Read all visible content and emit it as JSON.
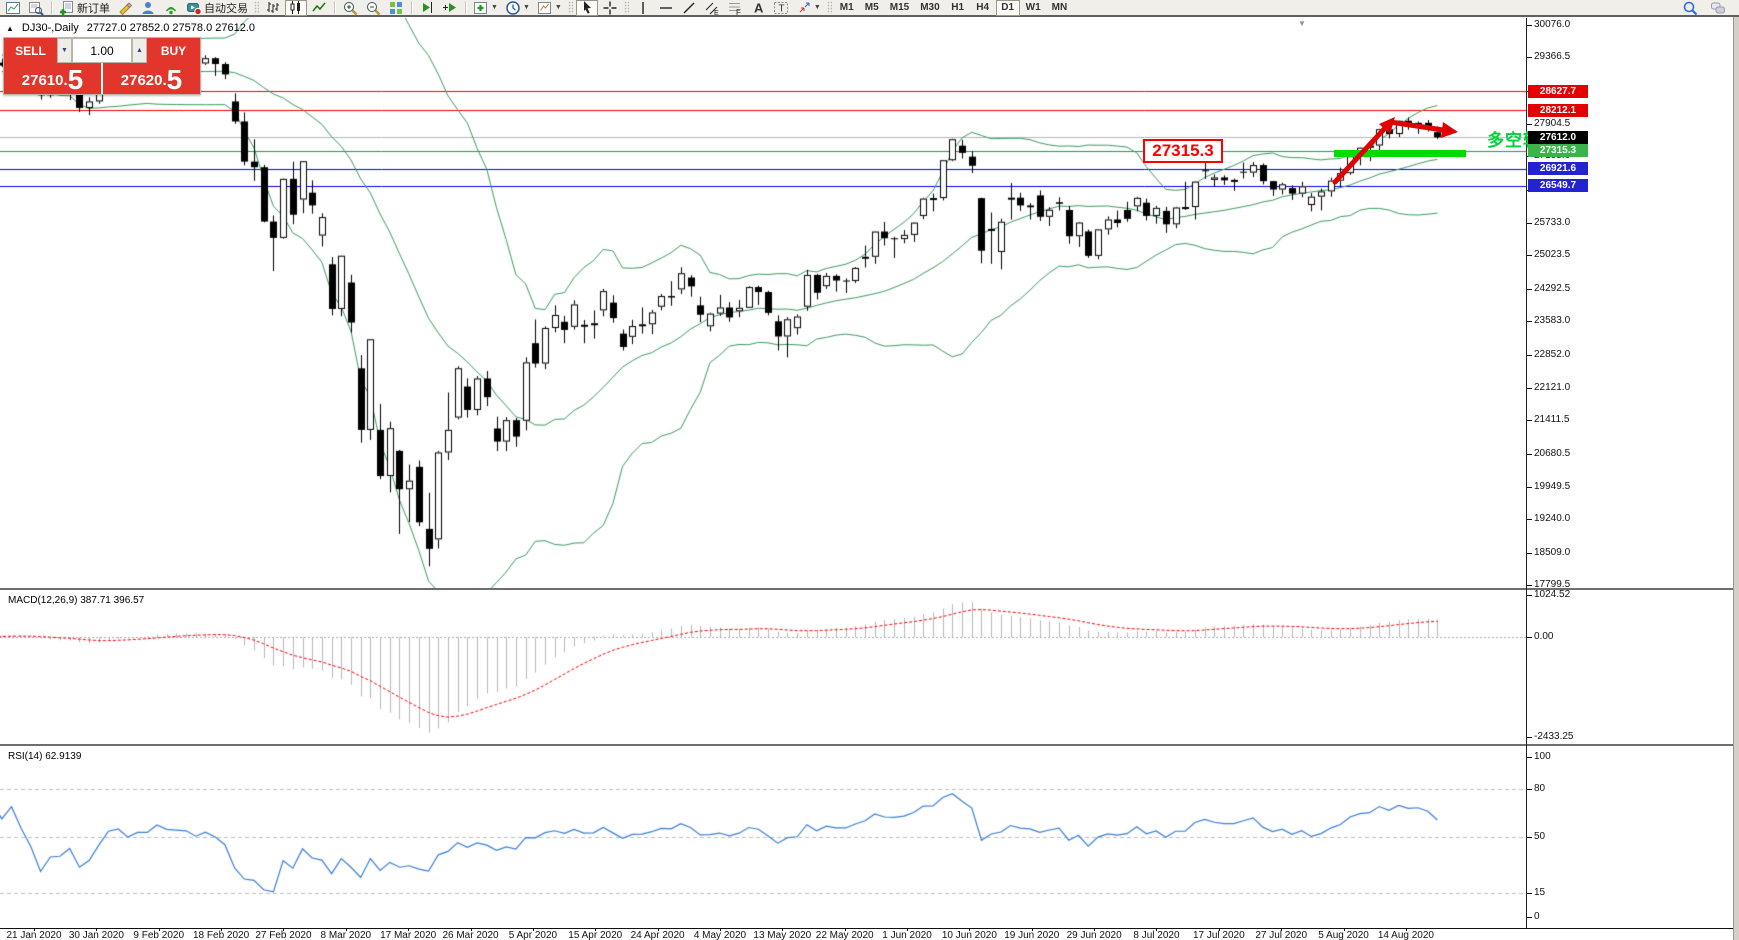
{
  "toolbar": {
    "groups": [
      {
        "grip": false,
        "items": [
          {
            "name": "charts",
            "icon": "charts"
          },
          {
            "name": "data-window",
            "icon": "data-window"
          }
        ]
      },
      {
        "grip": false,
        "items": [
          {
            "name": "new-order",
            "icon": "new-order",
            "label": "新订单"
          },
          {
            "name": "metaeditor",
            "icon": "metaeditor"
          },
          {
            "name": "community",
            "icon": "community"
          },
          {
            "name": "signals",
            "icon": "signals"
          },
          {
            "name": "autotrading",
            "icon": "autotrading",
            "label": "自动交易"
          }
        ]
      },
      {
        "grip": true,
        "items": [
          {
            "name": "bar-chart",
            "icon": "bars"
          },
          {
            "name": "candlestick-chart",
            "icon": "candles",
            "active": true
          },
          {
            "name": "line-chart",
            "icon": "line-chart"
          }
        ]
      },
      {
        "grip": false,
        "items": [
          {
            "name": "zoom-in",
            "icon": "zoom-in"
          },
          {
            "name": "zoom-out",
            "icon": "zoom-out"
          },
          {
            "name": "tile-windows",
            "icon": "tile-windows"
          }
        ]
      },
      {
        "grip": false,
        "items": [
          {
            "name": "auto-scroll",
            "icon": "auto-scroll"
          },
          {
            "name": "chart-shift",
            "icon": "chart-shift"
          }
        ]
      },
      {
        "grip": false,
        "items": [
          {
            "name": "indicators",
            "icon": "indicators",
            "caret": true
          },
          {
            "name": "periods",
            "icon": "periods",
            "caret": true
          },
          {
            "name": "templates",
            "icon": "templates",
            "caret": true
          }
        ]
      },
      {
        "grip": true,
        "items": [
          {
            "name": "cursor",
            "icon": "cursor",
            "active": true
          },
          {
            "name": "crosshair",
            "icon": "crosshair"
          }
        ]
      },
      {
        "grip": true,
        "items": [
          {
            "name": "vertical-line",
            "icon": "vertical-line"
          },
          {
            "name": "horizontal-line",
            "icon": "horizontal-line"
          },
          {
            "name": "trend-line",
            "icon": "trend-line"
          },
          {
            "name": "equidistant-channel",
            "icon": "equidistant-channel"
          },
          {
            "name": "fibonacci",
            "icon": "fibonacci"
          },
          {
            "name": "text",
            "icon": "text"
          },
          {
            "name": "text-label",
            "icon": "text-label"
          },
          {
            "name": "arrows-tool",
            "icon": "arrows-tool",
            "caret": true
          }
        ]
      }
    ],
    "timeframes": [
      "M1",
      "M5",
      "M15",
      "M30",
      "H1",
      "H4",
      "D1",
      "W1",
      "MN"
    ],
    "active_timeframe": "D1",
    "right_icons": [
      {
        "name": "search",
        "icon": "search"
      },
      {
        "name": "community-chat",
        "icon": "chat"
      }
    ]
  },
  "chart": {
    "collapse_marker": "▲",
    "symbol_period": "DJ30-,Daily",
    "ohlc_text": "27727.0 27852.0 27578.0 27612.0",
    "shift_marker": "▼",
    "trade_panel": {
      "sell_label": "SELL",
      "buy_label": "BUY",
      "volume": "1.00",
      "spin_down": "▼",
      "spin_up": "▲",
      "sell_price_main": "27610.",
      "sell_price_big": "5",
      "buy_price_main": "27620.",
      "buy_price_big": "5"
    },
    "levels": [
      {
        "value": "28627.7",
        "price": 28627.7,
        "line": "#ff0000",
        "badge": "#e40000"
      },
      {
        "value": "28212.1",
        "price": 28212.1,
        "line": "#ff0000",
        "badge": "#e40000"
      },
      {
        "value": "27612.0",
        "price": 27612.0,
        "line": "#b8b8b8",
        "badge": "#000000"
      },
      {
        "value": "27315.3",
        "price": 27315.3,
        "line": "#00a651",
        "badge": "#3bb54a"
      },
      {
        "value": "26921.6",
        "price": 26921.6,
        "line": "#0000ff",
        "badge": "#2323cf"
      },
      {
        "value": "26549.7",
        "price": 26549.7,
        "line": "#0000ff",
        "badge": "#2323cf"
      }
    ],
    "price_ticks": [
      "30076.0",
      "29366.5",
      "28635.5",
      "27904.5",
      "27195.0",
      "26464.0",
      "25733.0",
      "25023.5",
      "24292.5",
      "23583.0",
      "22852.0",
      "22121.0",
      "21411.5",
      "20680.5",
      "19949.5",
      "19240.0",
      "18509.0",
      "17799.5"
    ],
    "macd_label": {
      "title": "MACD(12,26,9)",
      "value_main": "387.71",
      "value_signal": "396.57"
    },
    "macd_ticks": [
      {
        "text": "1024.52",
        "v": 1024.52
      },
      {
        "text": "0.00",
        "v": 0
      },
      {
        "text": "-2433.25",
        "v": -2433.25
      }
    ],
    "rsi_label": {
      "title": "RSI(14)",
      "value": "62.9139"
    },
    "rsi_ticks": [
      {
        "text": "100",
        "v": 100
      },
      {
        "text": "80",
        "v": 80
      },
      {
        "text": "50",
        "v": 50
      },
      {
        "text": "15",
        "v": 15
      },
      {
        "text": "0",
        "v": 0
      }
    ],
    "rsi_levels": [
      80,
      50,
      15
    ],
    "annotations": {
      "price_flag": "27315.3",
      "pivot_text": "多空转折点"
    }
  },
  "chart_data": {
    "type": "candlestick",
    "symbol": "DJ30",
    "period": "Daily",
    "last_ohlc": {
      "open": 27727.0,
      "high": 27852.0,
      "low": 27578.0,
      "close": 27612.0
    },
    "price_axis": {
      "visible_max": 30229,
      "visible_min": 17734
    },
    "macd_axis": {
      "max": 1100,
      "min": -2550
    },
    "rsi_axis": {
      "max": 100,
      "min": 0
    },
    "levels": [
      28627.7,
      28212.1,
      27612.0,
      27315.3,
      26921.6,
      26549.7
    ],
    "indicators": {
      "bollinger": {
        "period": 20,
        "deviation": 2,
        "color": "#3c9a5f"
      },
      "macd": {
        "fast": 12,
        "slow": 26,
        "signal": 9,
        "last_main": 387.71,
        "last_signal": 396.57
      },
      "rsi": {
        "period": 14,
        "last": 62.9139,
        "color": "#3b7dd8"
      }
    },
    "time_labels": [
      "21 Jan 2020",
      "30 Jan 2020",
      "9 Feb 2020",
      "18 Feb 2020",
      "27 Feb 2020",
      "8 Mar 2020",
      "17 Mar 2020",
      "26 Mar 2020",
      "5 Apr 2020",
      "15 Apr 2020",
      "24 Apr 2020",
      "4 May 2020",
      "13 May 2020",
      "22 May 2020",
      "1 Jun 2020",
      "10 Jun 2020",
      "19 Jun 2020",
      "29 Jun 2020",
      "8 Jul 2020",
      "17 Jul 2020",
      "27 Jul 2020",
      "5 Aug 2020",
      "14 Aug 2020"
    ],
    "candles": [
      [
        28940,
        29130,
        28910,
        29090
      ],
      [
        29090,
        29320,
        29060,
        29300
      ],
      [
        29300,
        29410,
        29240,
        29350
      ],
      [
        29350,
        29390,
        29170,
        29250
      ],
      [
        29250,
        29338,
        29152,
        29186
      ],
      [
        29186,
        29320,
        29140,
        29290
      ],
      [
        29290,
        29300,
        29060,
        29160
      ],
      [
        29160,
        29230,
        28843,
        28990
      ],
      [
        28905,
        28960,
        28440,
        28536
      ],
      [
        28536,
        28750,
        28480,
        28723
      ],
      [
        28723,
        28860,
        28600,
        28734
      ],
      [
        28734,
        28880,
        28430,
        28859
      ],
      [
        28859,
        28870,
        28170,
        28256
      ],
      [
        28256,
        28490,
        28100,
        28400
      ],
      [
        28400,
        28830,
        28350,
        28808
      ],
      [
        28808,
        29310,
        28700,
        29291
      ],
      [
        29291,
        29400,
        29150,
        29380
      ],
      [
        29380,
        29390,
        29060,
        29103
      ],
      [
        29103,
        29280,
        28950,
        29277
      ],
      [
        29277,
        29420,
        29210,
        29276
      ],
      [
        29276,
        29570,
        29250,
        29551
      ],
      [
        29500,
        29540,
        29300,
        29423
      ],
      [
        29423,
        29480,
        29330,
        29398
      ],
      [
        29398,
        29430,
        29280,
        29380
      ],
      [
        29380,
        29400,
        29190,
        29232
      ],
      [
        29232,
        29409,
        29200,
        29348
      ],
      [
        29348,
        29370,
        28960,
        29220
      ],
      [
        29220,
        29260,
        28890,
        28992
      ],
      [
        28400,
        28580,
        27910,
        27961
      ],
      [
        27961,
        28160,
        27000,
        27081
      ],
      [
        27081,
        27570,
        26660,
        26958
      ],
      [
        26958,
        27010,
        25750,
        25767
      ],
      [
        25767,
        25900,
        24680,
        25409
      ],
      [
        25409,
        26710,
        25390,
        26703
      ],
      [
        26703,
        27080,
        25710,
        25917
      ],
      [
        26250,
        27090,
        25950,
        27090
      ],
      [
        26400,
        26670,
        25940,
        26121
      ],
      [
        25460,
        25950,
        25220,
        25865
      ],
      [
        24830,
        24990,
        23710,
        23851
      ],
      [
        23851,
        25020,
        23690,
        25018
      ],
      [
        24430,
        24600,
        23330,
        23553
      ],
      [
        22550,
        22840,
        20920,
        21200
      ],
      [
        21200,
        23190,
        20980,
        23186
      ],
      [
        21200,
        21770,
        20120,
        20188
      ],
      [
        20188,
        21380,
        19830,
        21237
      ],
      [
        20740,
        20760,
        18920,
        19899
      ],
      [
        19899,
        20440,
        19180,
        20087
      ],
      [
        20390,
        20530,
        19090,
        19174
      ],
      [
        19030,
        19820,
        18210,
        18592
      ],
      [
        18800,
        20740,
        18600,
        20705
      ],
      [
        20705,
        22020,
        20540,
        21201
      ],
      [
        21470,
        22595,
        21430,
        22552
      ],
      [
        22150,
        22330,
        21470,
        21637
      ],
      [
        21637,
        22380,
        21520,
        22327
      ],
      [
        22327,
        22490,
        21720,
        21917
      ],
      [
        21230,
        21490,
        20735,
        20944
      ],
      [
        20944,
        21480,
        20735,
        21413
      ],
      [
        21413,
        21460,
        20830,
        21053
      ],
      [
        21400,
        22790,
        21190,
        22680
      ],
      [
        23100,
        23620,
        22565,
        22654
      ],
      [
        22654,
        23470,
        22530,
        23434
      ],
      [
        23434,
        23930,
        23340,
        23719
      ],
      [
        23570,
        23700,
        23100,
        23391
      ],
      [
        23460,
        24040,
        23400,
        23950
      ],
      [
        23480,
        23610,
        23100,
        23504
      ],
      [
        23504,
        23820,
        23200,
        23538
      ],
      [
        23820,
        24290,
        23690,
        24242
      ],
      [
        23990,
        24150,
        23550,
        23650
      ],
      [
        23310,
        23400,
        22940,
        23018
      ],
      [
        23240,
        23613,
        23080,
        23476
      ],
      [
        23476,
        23885,
        23310,
        23515
      ],
      [
        23515,
        23830,
        23300,
        23775
      ],
      [
        23900,
        24180,
        23820,
        24134
      ],
      [
        24134,
        24460,
        23920,
        24102
      ],
      [
        24280,
        24765,
        24180,
        24634
      ],
      [
        24540,
        24590,
        24120,
        24346
      ],
      [
        23930,
        24120,
        23560,
        23724
      ],
      [
        23470,
        23770,
        23360,
        23749
      ],
      [
        23749,
        24160,
        23700,
        23883
      ],
      [
        23883,
        24000,
        23570,
        23665
      ],
      [
        23800,
        24050,
        23670,
        23876
      ],
      [
        23876,
        24350,
        23900,
        24331
      ],
      [
        24331,
        24360,
        23940,
        24222
      ],
      [
        24222,
        24250,
        23710,
        23765
      ],
      [
        23580,
        23710,
        22940,
        23248
      ],
      [
        23248,
        23670,
        22790,
        23625
      ],
      [
        23430,
        23730,
        23290,
        23685
      ],
      [
        23900,
        24710,
        23810,
        24597
      ],
      [
        24597,
        24620,
        24060,
        24206
      ],
      [
        24350,
        24640,
        24290,
        24576
      ],
      [
        24576,
        24610,
        24230,
        24474
      ],
      [
        24474,
        24520,
        24200,
        24465
      ],
      [
        24465,
        24770,
        24420,
        24750
      ],
      [
        24990,
        25240,
        24760,
        24995
      ],
      [
        24995,
        25550,
        24840,
        25548
      ],
      [
        25548,
        25760,
        25240,
        25401
      ],
      [
        25401,
        25430,
        24970,
        25383
      ],
      [
        25383,
        25580,
        25290,
        25475
      ],
      [
        25475,
        25750,
        25320,
        25743
      ],
      [
        25890,
        26290,
        25820,
        26270
      ],
      [
        26270,
        26380,
        25990,
        26282
      ],
      [
        26282,
        27110,
        26230,
        27111
      ],
      [
        27111,
        27580,
        27090,
        27572
      ],
      [
        27430,
        27560,
        27150,
        27272
      ],
      [
        27190,
        27310,
        26830,
        26990
      ],
      [
        26280,
        26290,
        24850,
        25128
      ],
      [
        25590,
        25965,
        24840,
        25605
      ],
      [
        25100,
        25830,
        24720,
        25763
      ],
      [
        26280,
        26610,
        25810,
        26290
      ],
      [
        26290,
        26400,
        26000,
        26120
      ],
      [
        26120,
        26170,
        25810,
        26080
      ],
      [
        26340,
        26450,
        25780,
        25871
      ],
      [
        25871,
        26080,
        25670,
        26025
      ],
      [
        26190,
        26300,
        26010,
        26156
      ],
      [
        26020,
        26110,
        25280,
        25445
      ],
      [
        25445,
        25760,
        25210,
        25745
      ],
      [
        25550,
        25590,
        24970,
        25015
      ],
      [
        25015,
        25600,
        24940,
        25595
      ],
      [
        25595,
        25880,
        25480,
        25812
      ],
      [
        25812,
        26010,
        25640,
        25735
      ],
      [
        26020,
        26200,
        25760,
        25827
      ],
      [
        26100,
        26310,
        25990,
        26287
      ],
      [
        26180,
        26270,
        25790,
        25890
      ],
      [
        25890,
        26110,
        25720,
        26067
      ],
      [
        26000,
        26090,
        25520,
        25706
      ],
      [
        25706,
        26090,
        25620,
        26075
      ],
      [
        26075,
        26640,
        26020,
        26085
      ],
      [
        26085,
        26650,
        25810,
        26642
      ],
      [
        26890,
        27070,
        26700,
        26870
      ],
      [
        26680,
        26800,
        26530,
        26734
      ],
      [
        26734,
        26780,
        26570,
        26671
      ],
      [
        26671,
        26710,
        26440,
        26680
      ],
      [
        26860,
        27060,
        26710,
        26840
      ],
      [
        26840,
        27070,
        26740,
        27005
      ],
      [
        27005,
        27040,
        26580,
        26652
      ],
      [
        26652,
        26660,
        26330,
        26469
      ],
      [
        26469,
        26620,
        26360,
        26584
      ],
      [
        26500,
        26560,
        26240,
        26379
      ],
      [
        26379,
        26640,
        26300,
        26539
      ],
      [
        26130,
        26390,
        25990,
        26313
      ],
      [
        26313,
        26490,
        26010,
        26428
      ],
      [
        26428,
        26730,
        26310,
        26664
      ],
      [
        26664,
        26950,
        26520,
        26828
      ],
      [
        26828,
        27270,
        26790,
        27201
      ],
      [
        27201,
        27390,
        27000,
        27386
      ],
      [
        27386,
        27470,
        27090,
        27433
      ],
      [
        27433,
        27800,
        27330,
        27791
      ],
      [
        27791,
        27940,
        27590,
        27686
      ],
      [
        27686,
        27980,
        27620,
        27976
      ],
      [
        27976,
        28050,
        27780,
        27896
      ],
      [
        27896,
        27960,
        27690,
        27931
      ],
      [
        27931,
        27990,
        27740,
        27844
      ],
      [
        27727,
        27852,
        27578,
        27612
      ]
    ]
  }
}
